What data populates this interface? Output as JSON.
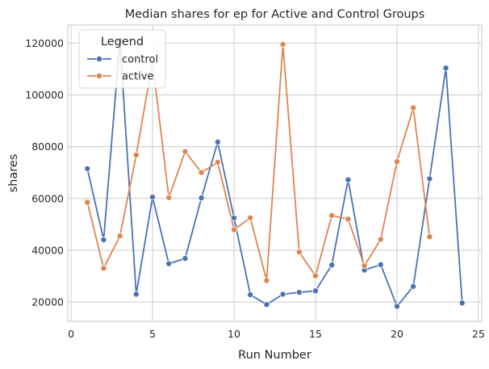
{
  "chart_data": {
    "type": "line",
    "title": "Median shares for ep for Active and Control Groups",
    "xlabel": "Run Number",
    "ylabel": "shares",
    "xlim": [
      -0.2,
      25.2
    ],
    "ylim": [
      12500,
      127000
    ],
    "xticks": [
      0,
      5,
      10,
      15,
      20,
      25
    ],
    "xtick_labels": [
      "0",
      "5",
      "10",
      "15",
      "20",
      "25"
    ],
    "yticks": [
      20000,
      40000,
      60000,
      80000,
      100000,
      120000
    ],
    "ytick_labels": [
      "20000",
      "40000",
      "60000",
      "80000",
      "100000",
      "120000"
    ],
    "grid": true,
    "legend": {
      "title": "Legend",
      "placement": "top-left"
    },
    "series": [
      {
        "name": "control",
        "color": "#4c72b0",
        "marker": "circle",
        "x": [
          1,
          2,
          3,
          4,
          5,
          6,
          7,
          8,
          9,
          10,
          11,
          12,
          13,
          14,
          15,
          16,
          17,
          18,
          19,
          20,
          21,
          22,
          23,
          24
        ],
        "y": [
          71500,
          44000,
          121000,
          23000,
          60500,
          34800,
          36800,
          60200,
          81800,
          52500,
          22800,
          19000,
          23000,
          23700,
          24300,
          34300,
          67200,
          32300,
          34400,
          18300,
          26000,
          67600,
          110400,
          19600
        ]
      },
      {
        "name": "active",
        "color": "#dd8452",
        "marker": "circle",
        "x": [
          1,
          2,
          3,
          4,
          5,
          6,
          7,
          8,
          9,
          10,
          11,
          12,
          13,
          14,
          15,
          16,
          17,
          18,
          19,
          20,
          21,
          22
        ],
        "y": [
          58500,
          33000,
          45500,
          76800,
          112800,
          60300,
          78100,
          70000,
          74000,
          47900,
          52500,
          28300,
          119500,
          39300,
          30100,
          53400,
          52000,
          34000,
          44200,
          74200,
          95000,
          45200
        ]
      }
    ]
  }
}
